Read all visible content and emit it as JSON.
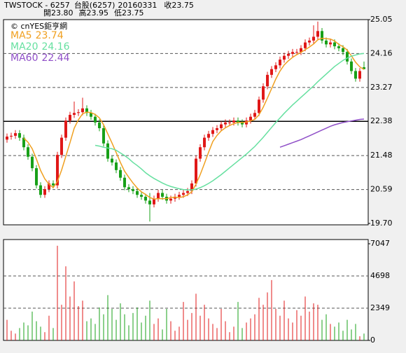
{
  "header": {
    "title": "TWSTOCK - 6257",
    "market": "台股(6257)",
    "date": "20160331",
    "close": "收23.75",
    "open": "開23.80",
    "high": "高23.95",
    "low": "低23.75",
    "source": "© cnYES鉅亨網"
  },
  "chart_data": [
    {
      "type": "candlestick",
      "ylim": [
        19.7,
        25.05
      ],
      "yticks": [
        25.05,
        24.16,
        23.27,
        22.38,
        21.48,
        20.59,
        {
          "value": 19.7,
          "label": "19.70"
        }
      ],
      "grid": true,
      "up_color": "#e01818",
      "down_color": "#18a018",
      "candles": [
        [
          21.9,
          22.06,
          21.82,
          21.98
        ],
        [
          21.98,
          22.08,
          21.9,
          22.0
        ],
        [
          22.0,
          22.15,
          21.92,
          22.07
        ],
        [
          22.07,
          22.15,
          21.87,
          21.95
        ],
        [
          21.95,
          22.03,
          21.62,
          21.7
        ],
        [
          21.7,
          21.78,
          21.37,
          21.45
        ],
        [
          21.45,
          21.53,
          21.07,
          21.15
        ],
        [
          21.15,
          21.23,
          20.62,
          20.7
        ],
        [
          20.7,
          20.78,
          20.37,
          20.45
        ],
        [
          20.45,
          20.68,
          20.37,
          20.6
        ],
        [
          20.6,
          20.83,
          20.52,
          20.75
        ],
        [
          20.75,
          20.83,
          20.62,
          20.7
        ],
        [
          20.7,
          21.58,
          20.62,
          21.5
        ],
        [
          21.5,
          22.03,
          21.42,
          21.95
        ],
        [
          21.95,
          22.48,
          21.87,
          22.4
        ],
        [
          22.4,
          22.63,
          22.32,
          22.55
        ],
        [
          22.55,
          22.9,
          22.47,
          22.6
        ],
        [
          22.6,
          22.7,
          22.52,
          22.62
        ],
        [
          22.62,
          23.0,
          22.54,
          22.72
        ],
        [
          22.72,
          22.8,
          22.52,
          22.6
        ],
        [
          22.6,
          22.68,
          22.42,
          22.5
        ],
        [
          22.5,
          22.58,
          22.27,
          22.35
        ],
        [
          22.35,
          22.43,
          22.12,
          22.2
        ],
        [
          22.2,
          22.28,
          21.72,
          21.8
        ],
        [
          21.8,
          21.88,
          21.32,
          21.4
        ],
        [
          21.4,
          21.48,
          21.22,
          21.3
        ],
        [
          21.3,
          21.38,
          21.02,
          21.1
        ],
        [
          21.1,
          21.18,
          20.82,
          20.9
        ],
        [
          20.9,
          20.98,
          20.57,
          20.65
        ],
        [
          20.65,
          20.73,
          20.52,
          20.6
        ],
        [
          20.6,
          20.68,
          20.47,
          20.55
        ],
        [
          20.55,
          20.63,
          20.37,
          20.45
        ],
        [
          20.45,
          20.53,
          20.32,
          20.4
        ],
        [
          20.4,
          20.48,
          20.22,
          20.3
        ],
        [
          20.3,
          20.5,
          19.75,
          20.2
        ],
        [
          20.2,
          20.43,
          20.12,
          20.35
        ],
        [
          20.35,
          20.58,
          20.27,
          20.5
        ],
        [
          20.5,
          20.58,
          20.32,
          20.4
        ],
        [
          20.4,
          20.48,
          20.22,
          20.3
        ],
        [
          20.3,
          20.43,
          20.22,
          20.35
        ],
        [
          20.35,
          20.48,
          20.27,
          20.4
        ],
        [
          20.4,
          20.53,
          20.32,
          20.45
        ],
        [
          20.45,
          20.58,
          20.37,
          20.5
        ],
        [
          20.5,
          20.63,
          20.42,
          20.55
        ],
        [
          20.55,
          20.83,
          20.47,
          20.75
        ],
        [
          20.75,
          21.48,
          20.67,
          21.4
        ],
        [
          21.4,
          21.78,
          21.32,
          21.7
        ],
        [
          21.7,
          22.03,
          21.62,
          21.95
        ],
        [
          21.95,
          22.13,
          21.87,
          22.05
        ],
        [
          22.05,
          22.23,
          21.97,
          22.15
        ],
        [
          22.15,
          22.28,
          22.07,
          22.2
        ],
        [
          22.2,
          22.38,
          22.12,
          22.3
        ],
        [
          22.3,
          22.43,
          22.22,
          22.35
        ],
        [
          22.35,
          22.43,
          22.27,
          22.35
        ],
        [
          22.35,
          22.48,
          22.27,
          22.4
        ],
        [
          22.4,
          22.48,
          22.27,
          22.35
        ],
        [
          22.35,
          22.43,
          22.22,
          22.3
        ],
        [
          22.3,
          22.48,
          22.22,
          22.4
        ],
        [
          22.4,
          22.58,
          22.32,
          22.5
        ],
        [
          22.5,
          22.68,
          22.42,
          22.6
        ],
        [
          22.6,
          23.03,
          22.52,
          22.95
        ],
        [
          22.95,
          23.38,
          22.87,
          23.3
        ],
        [
          23.3,
          23.68,
          23.22,
          23.6
        ],
        [
          23.6,
          23.83,
          23.52,
          23.75
        ],
        [
          23.75,
          23.93,
          23.67,
          23.85
        ],
        [
          23.85,
          24.08,
          23.77,
          24.0
        ],
        [
          24.0,
          24.18,
          23.92,
          24.1
        ],
        [
          24.1,
          24.23,
          24.02,
          24.15
        ],
        [
          24.15,
          24.28,
          24.07,
          24.2
        ],
        [
          24.2,
          24.28,
          24.12,
          24.2
        ],
        [
          24.2,
          24.38,
          24.12,
          24.3
        ],
        [
          24.3,
          24.53,
          24.22,
          24.45
        ],
        [
          24.45,
          24.58,
          24.37,
          24.5
        ],
        [
          24.5,
          24.9,
          24.42,
          24.6
        ],
        [
          24.6,
          25.0,
          24.52,
          24.75
        ],
        [
          24.75,
          24.83,
          24.42,
          24.5
        ],
        [
          24.5,
          24.58,
          24.32,
          24.4
        ],
        [
          24.4,
          24.53,
          24.32,
          24.45
        ],
        [
          24.45,
          24.53,
          24.27,
          24.35
        ],
        [
          24.35,
          24.43,
          24.22,
          24.3
        ],
        [
          24.3,
          24.38,
          24.12,
          24.2
        ],
        [
          24.2,
          24.28,
          23.87,
          23.95
        ],
        [
          23.95,
          24.03,
          23.62,
          23.7
        ],
        [
          23.7,
          23.78,
          23.42,
          23.5
        ],
        [
          23.5,
          23.78,
          23.42,
          23.7
        ],
        [
          23.8,
          23.95,
          23.75,
          23.75
        ]
      ],
      "series": [
        {
          "name": "MA5",
          "color": "#f0a020",
          "values": [
            null,
            null,
            null,
            null,
            21.94,
            21.83,
            21.66,
            21.39,
            21.09,
            20.87,
            20.73,
            20.64,
            20.8,
            21.1,
            21.46,
            21.82,
            22.2,
            22.42,
            22.58,
            22.62,
            22.61,
            22.56,
            22.47,
            22.29,
            22.05,
            21.81,
            21.56,
            21.3,
            21.07,
            20.91,
            20.76,
            20.63,
            20.53,
            20.46,
            20.38,
            20.34,
            20.35,
            20.35,
            20.35,
            20.38,
            20.39,
            20.38,
            20.4,
            20.45,
            20.53,
            20.73,
            20.98,
            21.27,
            21.57,
            21.85,
            22.01,
            22.13,
            22.21,
            22.27,
            22.32,
            22.35,
            22.35,
            22.36,
            22.39,
            22.43,
            22.55,
            22.75,
            22.99,
            23.24,
            23.49,
            23.7,
            23.86,
            23.97,
            24.06,
            24.13,
            24.19,
            24.26,
            24.33,
            24.41,
            24.52,
            24.56,
            24.55,
            24.54,
            24.49,
            24.4,
            24.34,
            24.25,
            24.1,
            23.93,
            23.81,
            23.74
          ]
        },
        {
          "name": "MA20",
          "color": "#66e0a0",
          "values": [
            null,
            null,
            null,
            null,
            null,
            null,
            null,
            null,
            null,
            null,
            null,
            null,
            null,
            null,
            null,
            null,
            null,
            null,
            null,
            null,
            null,
            21.75,
            21.73,
            21.7,
            21.68,
            21.66,
            21.62,
            21.55,
            21.48,
            21.4,
            21.3,
            21.22,
            21.13,
            21.03,
            20.95,
            20.88,
            20.82,
            20.76,
            20.71,
            20.67,
            20.64,
            20.61,
            20.59,
            20.58,
            20.58,
            20.6,
            20.64,
            20.69,
            20.75,
            20.82,
            20.9,
            20.98,
            21.07,
            21.16,
            21.25,
            21.34,
            21.43,
            21.52,
            21.62,
            21.72,
            21.84,
            21.96,
            22.09,
            22.22,
            22.35,
            22.47,
            22.59,
            22.7,
            22.81,
            22.91,
            23.01,
            23.11,
            23.21,
            23.31,
            23.42,
            23.52,
            23.62,
            23.72,
            23.82,
            23.9,
            23.98,
            24.04,
            24.09,
            24.12,
            24.15,
            24.16
          ]
        },
        {
          "name": "MA60",
          "color": "#9050c8",
          "values": [
            null,
            null,
            null,
            null,
            null,
            null,
            null,
            null,
            null,
            null,
            null,
            null,
            null,
            null,
            null,
            null,
            null,
            null,
            null,
            null,
            null,
            null,
            null,
            null,
            null,
            null,
            null,
            null,
            null,
            null,
            null,
            null,
            null,
            null,
            null,
            null,
            null,
            null,
            null,
            null,
            null,
            null,
            null,
            null,
            null,
            null,
            null,
            null,
            null,
            null,
            null,
            null,
            null,
            null,
            null,
            null,
            null,
            null,
            null,
            null,
            null,
            null,
            null,
            null,
            null,
            21.7,
            21.74,
            21.78,
            21.82,
            21.86,
            21.9,
            21.95,
            22.0,
            22.05,
            22.1,
            22.15,
            22.2,
            22.25,
            22.29,
            22.32,
            22.35,
            22.37,
            22.39,
            22.41,
            22.43,
            22.44
          ]
        }
      ]
    },
    {
      "type": "bar",
      "ylim": [
        0,
        7047
      ],
      "yticks": [
        7047,
        4698,
        2349,
        0
      ],
      "grid": true,
      "values": [
        1500,
        700,
        500,
        900,
        1300,
        1100,
        2100,
        1400,
        1000,
        600,
        1800,
        900,
        6900,
        2600,
        5400,
        3200,
        4300,
        2500,
        2900,
        1400,
        1600,
        1200,
        2400,
        1900,
        3300,
        2300,
        1500,
        2700,
        1900,
        1100,
        2000,
        2400,
        1300,
        1800,
        2900,
        1200,
        1600,
        800,
        2300,
        1400,
        700,
        1000,
        2800,
        1500,
        2000,
        3400,
        1800,
        2600,
        1600,
        1200,
        900,
        2300,
        1400,
        600,
        1000,
        2800,
        900,
        1300,
        1600,
        1900,
        3100,
        2600,
        3500,
        4400,
        2300,
        1800,
        2900,
        1600,
        1300,
        2200,
        1800,
        3200,
        2100,
        2700,
        2600,
        1500,
        1900,
        1200,
        1000,
        1300,
        700,
        1500,
        800,
        1200,
        300,
        500
      ]
    }
  ]
}
